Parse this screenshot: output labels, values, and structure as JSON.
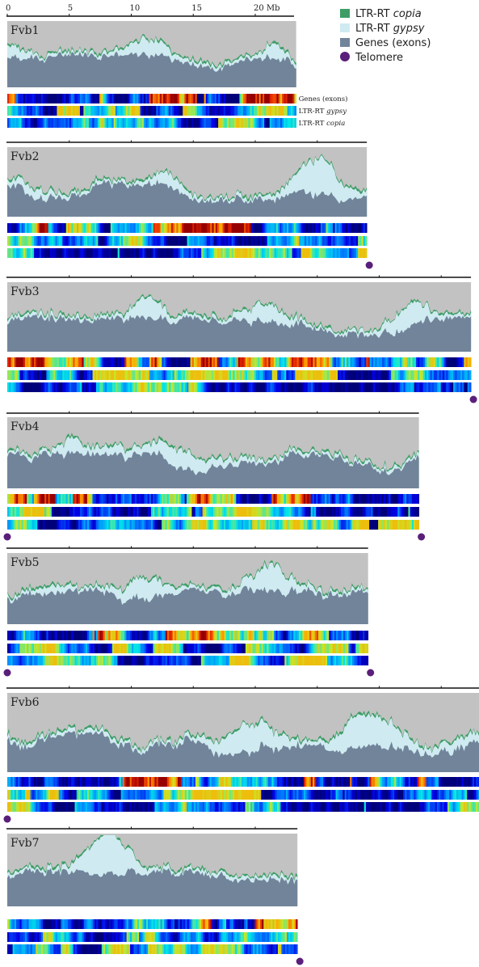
{
  "legend": {
    "items": [
      {
        "label": "LTR-RT ",
        "label_italic": "copia",
        "color": "#3e9e66",
        "shape": "square"
      },
      {
        "label": "LTR-RT ",
        "label_italic": "gypsy",
        "color": "#cfeaf0",
        "shape": "square"
      },
      {
        "label": "Genes (exons)",
        "label_italic": "",
        "color": "#71849a",
        "shape": "square"
      },
      {
        "label": "Telomere",
        "label_italic": "",
        "color": "#5a1f7a",
        "shape": "circle"
      }
    ]
  },
  "scale": {
    "ticks": [
      "0",
      "5",
      "10",
      "15",
      "20 Mb"
    ],
    "tick_values_mb": [
      0,
      5,
      10,
      15,
      20
    ]
  },
  "track_labels": [
    "Genes (exons)",
    "LTR-RT ",
    "LTR-RT "
  ],
  "track_labels_italic": [
    "",
    "gypsy",
    "copia"
  ],
  "colors": {
    "background_panel": "#c2c2c2",
    "genes": "#71849a",
    "gypsy": "#cfeaf0",
    "copia": "#3e9e66",
    "telomere": "#5a1f7a",
    "axis": "#111111"
  },
  "chromosomes": [
    {
      "name": "Fvb1",
      "length_mb": 23.3,
      "telomeres": []
    },
    {
      "name": "Fvb2",
      "length_mb": 29.0,
      "telomeres": [
        "end"
      ]
    },
    {
      "name": "Fvb3",
      "length_mb": 37.4,
      "telomeres": [
        "end"
      ]
    },
    {
      "name": "Fvb4",
      "length_mb": 33.2,
      "telomeres": [
        "start",
        "end"
      ]
    },
    {
      "name": "Fvb5",
      "length_mb": 29.1,
      "telomeres": [
        "start",
        "end"
      ]
    },
    {
      "name": "Fvb6",
      "length_mb": 38.8,
      "telomeres": [
        "start",
        "end"
      ]
    },
    {
      "name": "Fvb7",
      "length_mb": 23.4,
      "telomeres": [
        "end"
      ]
    }
  ]
}
